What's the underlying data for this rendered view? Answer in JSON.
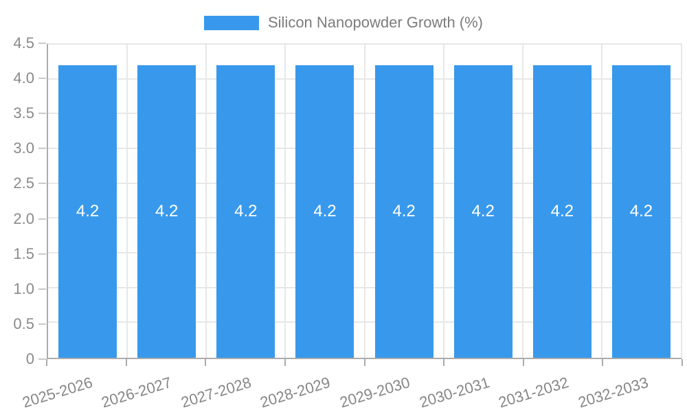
{
  "legend": {
    "label": "Silicon Nanopowder Growth (%)",
    "position": "top-center"
  },
  "colors": {
    "bar": "#3899EC",
    "bar_value_text": "#ffffff",
    "grid_line": "#e7e7e7",
    "axis_line": "#ababab",
    "y_tick_mark": "#c9c9c9",
    "x_tick_mark": "#ababab",
    "tick_text": "#8a8a8a",
    "legend_text": "#7c7c7c",
    "background": "#ffffff"
  },
  "chart_data": {
    "type": "bar",
    "title": "Silicon Nanopowder Growth (%)",
    "categories": [
      "2025-2026",
      "2026-2027",
      "2027-2028",
      "2028-2029",
      "2029-2030",
      "2030-2031",
      "2031-2032",
      "2032-2033"
    ],
    "series": [
      {
        "name": "Silicon Nanopowder Growth (%)",
        "values": [
          4.2,
          4.2,
          4.2,
          4.2,
          4.2,
          4.2,
          4.2,
          4.2
        ],
        "value_labels": [
          "4.2",
          "4.2",
          "4.2",
          "4.2",
          "4.2",
          "4.2",
          "4.2",
          "4.2"
        ]
      }
    ],
    "xlabel": "",
    "ylabel": "",
    "ylim": [
      0,
      4.5
    ],
    "ytick_labels": [
      "0",
      "0.5",
      "1.0",
      "1.5",
      "2.0",
      "2.5",
      "3.0",
      "3.5",
      "4.0",
      "4.5"
    ],
    "grid": true,
    "legend_position": "top-center",
    "x_label_rotation_deg": -17,
    "value_label_position": "center-of-bar"
  }
}
